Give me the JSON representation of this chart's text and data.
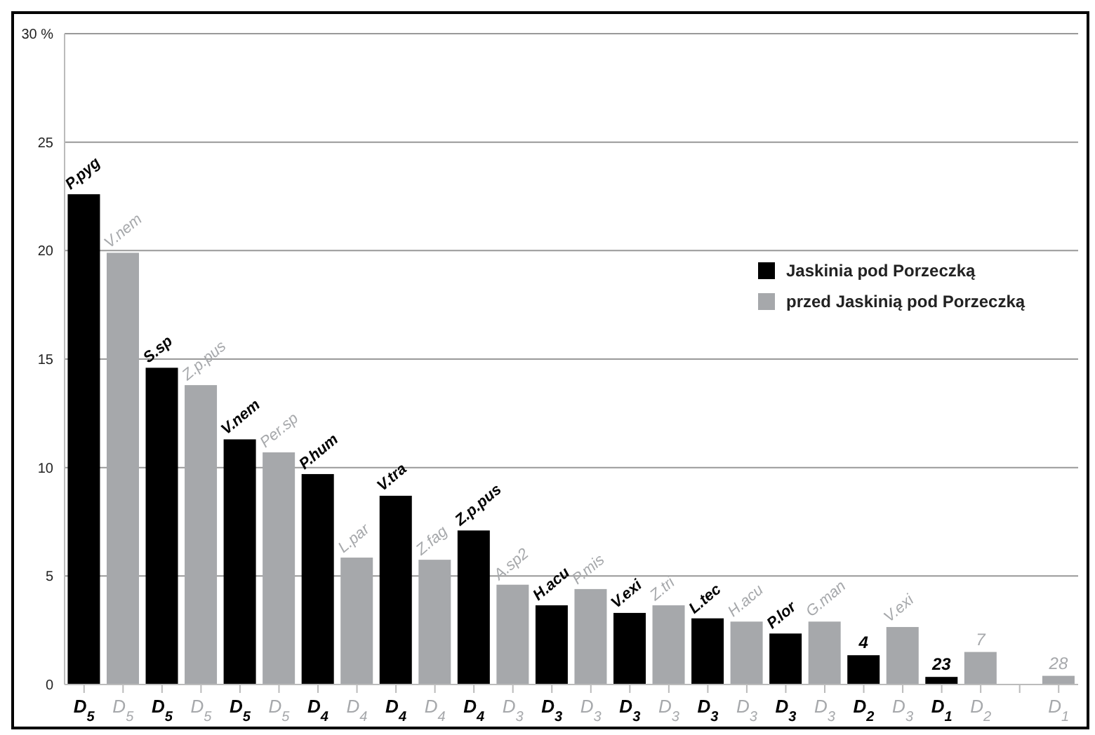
{
  "chart_data": {
    "type": "bar",
    "categories": [
      "D$_{5}$",
      "D$_{5}$",
      "D$_{5}$",
      "D$_{5}$",
      "D$_{5}$",
      "D$_{5}$",
      "D$_{4}$",
      "D$_{4}$",
      "D$_{4}$",
      "D$_{4}$",
      "D$_{4}$",
      "D$_{3}$",
      "D$_{3}$",
      "D$_{3}$",
      "D$_{3}$",
      "D$_{3}$",
      "D$_{3}$",
      "D$_{3}$",
      "D$_{3}$",
      "D$_{3}$",
      "D$_{2}$",
      "D$_{3}$",
      "D$_{1}$",
      "D$_{2}$",
      null,
      "D$_{1}$"
    ],
    "series": [
      {
        "name": "Jaskinia pod Porzeczką",
        "color": "#000000",
        "values": [
          22.6,
          null,
          14.6,
          null,
          11.3,
          null,
          9.7,
          null,
          8.7,
          null,
          7.1,
          null,
          3.65,
          null,
          3.3,
          null,
          3.05,
          null,
          2.35,
          null,
          1.35,
          null,
          0.35,
          null,
          null,
          null
        ],
        "value_labels": [
          "P.pyg",
          null,
          "S.sp",
          null,
          "V.nem",
          null,
          "P.hum",
          null,
          "V.tra",
          null,
          "Z.p.pus",
          null,
          "H.acu",
          null,
          "V.exi",
          null,
          "L.tec",
          null,
          "P.lor",
          null,
          null,
          null,
          null,
          null,
          null,
          null
        ]
      },
      {
        "name": "przed Jaskinią pod Porzeczką",
        "color": "#a6a8ab",
        "values": [
          null,
          19.9,
          null,
          13.8,
          null,
          10.7,
          null,
          5.85,
          null,
          5.75,
          null,
          4.6,
          null,
          4.4,
          null,
          3.65,
          null,
          2.9,
          null,
          2.9,
          null,
          2.65,
          null,
          1.5,
          null,
          0.4
        ],
        "value_labels": [
          null,
          "V.nem",
          null,
          "Z.p.pus",
          null,
          "Per.sp",
          null,
          "L.par",
          null,
          "Z.fag",
          null,
          "A.sp2",
          null,
          "P.mis",
          null,
          "Z.tri",
          null,
          "H.acu",
          null,
          "G.man",
          null,
          "V.exi",
          null,
          null,
          null,
          null
        ]
      }
    ],
    "annotations": [
      "4",
      "23",
      "7",
      "28"
    ],
    "ylim": [
      0,
      30
    ],
    "yticks": [
      0,
      5,
      10,
      15,
      20,
      25,
      {
        "value": 30,
        "label": "30 %"
      }
    ],
    "grid": "y",
    "legend": "right"
  }
}
